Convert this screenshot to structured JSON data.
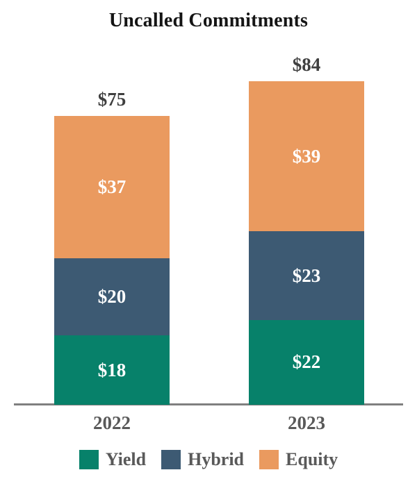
{
  "chart_data": {
    "type": "bar",
    "stacked": true,
    "title": "Uncalled Commitments",
    "categories": [
      "2022",
      "2023"
    ],
    "series": [
      {
        "name": "Yield",
        "color": "#07816A",
        "values": [
          18,
          22
        ],
        "labels": [
          "$18",
          "$22"
        ]
      },
      {
        "name": "Hybrid",
        "color": "#3D5A73",
        "values": [
          20,
          23
        ],
        "labels": [
          "$20",
          "$23"
        ]
      },
      {
        "name": "Equity",
        "color": "#EA9A5F",
        "values": [
          37,
          39
        ],
        "labels": [
          "$37",
          "$39"
        ]
      }
    ],
    "totals": [
      75,
      84
    ],
    "total_labels": [
      "$75",
      "$84"
    ],
    "legend_entries": [
      "Yield",
      "Hybrid",
      "Equity"
    ],
    "legend_position": "bottom",
    "grid": false,
    "ylim": [
      0,
      84
    ],
    "colors": {
      "segment_label": "#FFFFFF",
      "total_label": "#3F3F3F",
      "axis_label": "#595959",
      "axis_line": "#7F7F7F",
      "title": "#151515",
      "background": "#FFFFFF"
    }
  }
}
